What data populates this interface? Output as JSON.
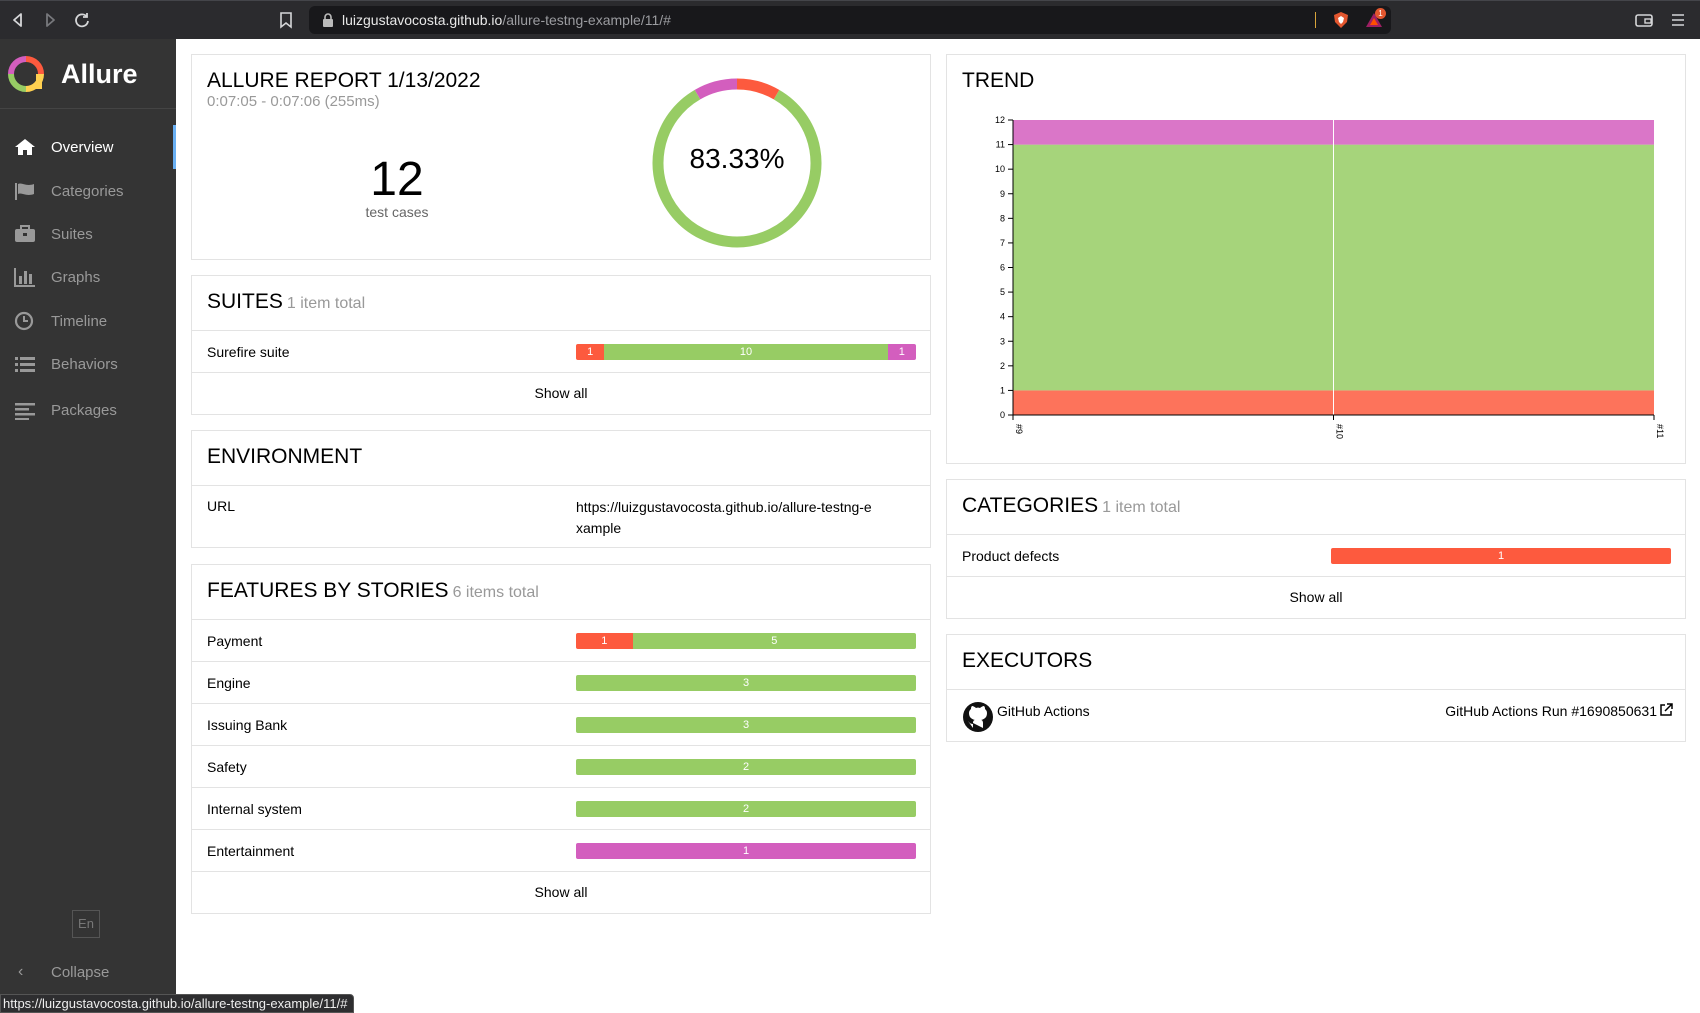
{
  "browser": {
    "url_host": "luizgustavocosta.github.io",
    "url_path": "/allure-testng-example/11/#",
    "bat_badge": "1",
    "status_url": "https://luizgustavocosta.github.io/allure-testng-example/11/#"
  },
  "sidebar": {
    "brand": "Allure",
    "items": [
      {
        "label": "Overview",
        "icon": "home-icon"
      },
      {
        "label": "Categories",
        "icon": "flag-icon"
      },
      {
        "label": "Suites",
        "icon": "briefcase-icon"
      },
      {
        "label": "Graphs",
        "icon": "bar-chart-icon"
      },
      {
        "label": "Timeline",
        "icon": "clock-icon"
      },
      {
        "label": "Behaviors",
        "icon": "list-icon"
      },
      {
        "label": "Packages",
        "icon": "align-left-icon"
      }
    ],
    "language": "En",
    "collapse": "Collapse"
  },
  "summary": {
    "title": "ALLURE REPORT 1/13/2022",
    "duration": "0:07:05 - 0:07:06 (255ms)",
    "count": "12",
    "count_label": "test cases",
    "percent": "83.33%",
    "donut": {
      "failed": 1,
      "passed": 10,
      "unknown": 1
    }
  },
  "suites": {
    "title": "SUITES",
    "subtitle": "1 item total",
    "rows": [
      {
        "name": "Surefire suite",
        "failed": 1,
        "passed": 10,
        "unknown": 1
      }
    ],
    "show_all": "Show all"
  },
  "environment": {
    "title": "ENVIRONMENT",
    "key": "URL",
    "value": "https://luizgustavocosta.github.io/allure-testng-example"
  },
  "features": {
    "title": "FEATURES BY STORIES",
    "subtitle": "6 items total",
    "rows": [
      {
        "name": "Payment",
        "failed": 1,
        "passed": 5,
        "unknown": 0
      },
      {
        "name": "Engine",
        "failed": 0,
        "passed": 3,
        "unknown": 0
      },
      {
        "name": "Issuing Bank",
        "failed": 0,
        "passed": 3,
        "unknown": 0
      },
      {
        "name": "Safety",
        "failed": 0,
        "passed": 2,
        "unknown": 0
      },
      {
        "name": "Internal system",
        "failed": 0,
        "passed": 2,
        "unknown": 0
      },
      {
        "name": "Entertainment",
        "failed": 0,
        "passed": 0,
        "unknown": 1
      }
    ],
    "show_all": "Show all"
  },
  "trend": {
    "title": "TREND"
  },
  "chart_data": {
    "type": "area",
    "title": "TREND",
    "categories": [
      "#9",
      "#10",
      "#11"
    ],
    "series": [
      {
        "name": "failed",
        "values": [
          1,
          1,
          1
        ],
        "color": "#fd5a3e"
      },
      {
        "name": "passed",
        "values": [
          10,
          10,
          10
        ],
        "color": "#97cc64"
      },
      {
        "name": "unknown",
        "values": [
          1,
          1,
          1
        ],
        "color": "#d35ebe"
      }
    ],
    "stacked": true,
    "ylim": [
      0,
      12
    ],
    "yticks": [
      0,
      1,
      2,
      3,
      4,
      5,
      6,
      7,
      8,
      9,
      10,
      11,
      12
    ]
  },
  "categories": {
    "title": "CATEGORIES",
    "subtitle": "1 item total",
    "rows": [
      {
        "name": "Product defects",
        "failed": 1
      }
    ],
    "show_all": "Show all"
  },
  "executors": {
    "title": "EXECUTORS",
    "name": "GitHub Actions",
    "run": "GitHub Actions Run #1690850631"
  },
  "colors": {
    "failed": "#fd5a3e",
    "passed": "#97cc64",
    "unknown": "#d35ebe",
    "sidebar": "#343434",
    "accent": "#6ab0f3"
  }
}
